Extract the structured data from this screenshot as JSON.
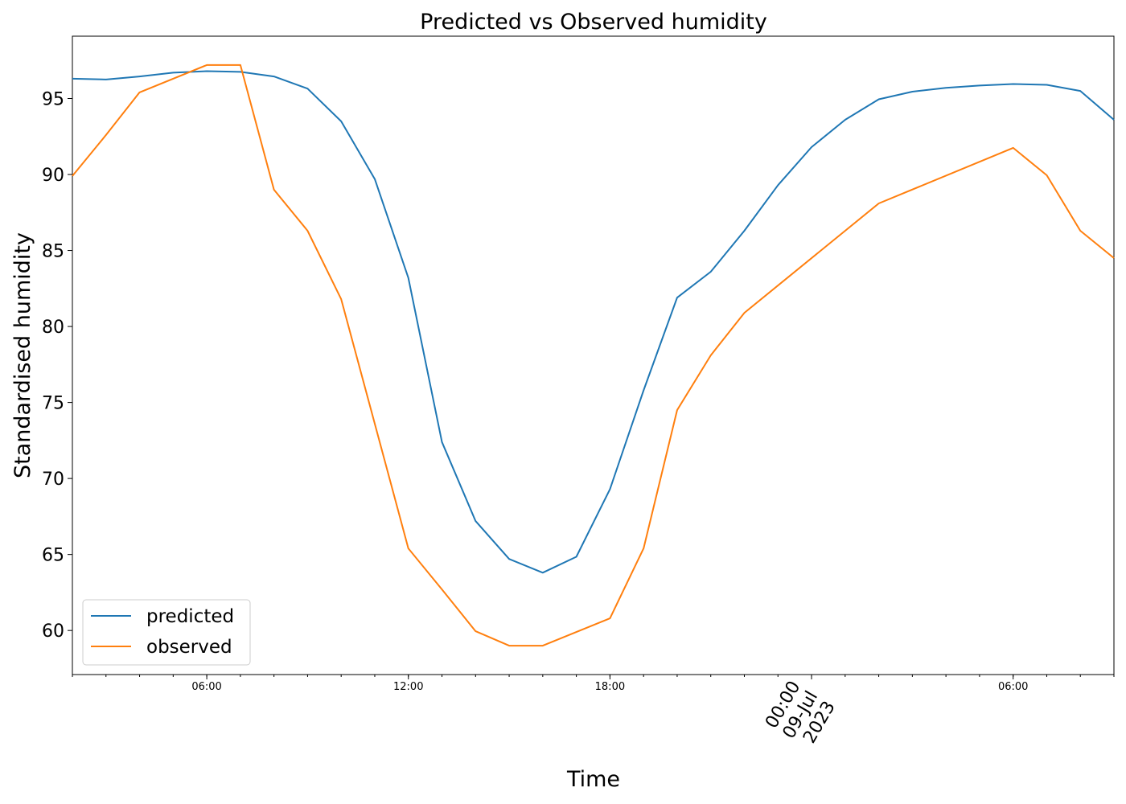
{
  "chart_data": {
    "type": "line",
    "title": "Predicted vs Observed humidity",
    "xlabel": "Time",
    "ylabel": "Standardised humidity",
    "x_axis": "datetime",
    "x": [
      "2023-07-08 02:00",
      "2023-07-08 03:00",
      "2023-07-08 04:00",
      "2023-07-08 05:00",
      "2023-07-08 06:00",
      "2023-07-08 07:00",
      "2023-07-08 08:00",
      "2023-07-08 09:00",
      "2023-07-08 10:00",
      "2023-07-08 11:00",
      "2023-07-08 12:00",
      "2023-07-08 13:00",
      "2023-07-08 14:00",
      "2023-07-08 15:00",
      "2023-07-08 16:00",
      "2023-07-08 17:00",
      "2023-07-08 18:00",
      "2023-07-08 19:00",
      "2023-07-08 20:00",
      "2023-07-08 21:00",
      "2023-07-08 22:00",
      "2023-07-08 23:00",
      "2023-07-09 00:00",
      "2023-07-09 01:00",
      "2023-07-09 02:00",
      "2023-07-09 03:00",
      "2023-07-09 04:00",
      "2023-07-09 05:00",
      "2023-07-09 06:00",
      "2023-07-09 07:00",
      "2023-07-09 08:00",
      "2023-07-09 09:00"
    ],
    "series": [
      {
        "name": "predicted",
        "color": "#1f77b4",
        "values": [
          96.3,
          96.25,
          96.45,
          96.7,
          96.8,
          96.75,
          96.45,
          95.65,
          93.5,
          89.7,
          83.2,
          72.4,
          67.2,
          64.7,
          63.8,
          64.85,
          69.3,
          75.8,
          81.9,
          83.6,
          86.3,
          89.3,
          91.8,
          93.6,
          94.95,
          95.45,
          95.7,
          95.85,
          95.95,
          95.9,
          95.5,
          93.6
        ]
      },
      {
        "name": "observed",
        "color": "#ff7f0e",
        "values": [
          89.9,
          92.6,
          95.4,
          null,
          97.2,
          97.2,
          89.0,
          86.3,
          81.8,
          73.6,
          65.4,
          62.7,
          59.95,
          59.0,
          59.0,
          59.9,
          60.8,
          65.4,
          74.5,
          78.1,
          80.9,
          null,
          null,
          null,
          88.1,
          null,
          null,
          null,
          91.75,
          89.95,
          86.3,
          84.5
        ]
      }
    ],
    "ylim": [
      57.1,
      99.1
    ],
    "y_ticks": [
      60,
      65,
      70,
      75,
      80,
      85,
      90,
      95
    ],
    "x_ticks": [
      {
        "x": "2023-07-08 06:00",
        "label": "06:00"
      },
      {
        "x": "2023-07-08 12:00",
        "label": "12:00"
      },
      {
        "x": "2023-07-08 18:00",
        "label": "18:00"
      },
      {
        "x": "2023-07-09 00:00",
        "label_lines": [
          "00:00",
          "09-Jul",
          "2023"
        ],
        "major": true
      },
      {
        "x": "2023-07-09 06:00",
        "label": "06:00"
      }
    ],
    "grid": false,
    "legend_position": "lower-left"
  }
}
